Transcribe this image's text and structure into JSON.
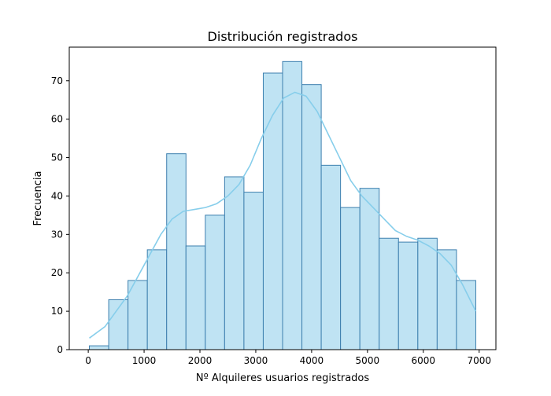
{
  "chart_data": {
    "type": "bar",
    "subtype": "histogram-with-kde",
    "title": "Distribución registrados",
    "xlabel": "Nº Alquileres usuarios registrados",
    "ylabel": "Frecuencia",
    "bin_edges": [
      20,
      366,
      712,
      1058,
      1404,
      1750,
      2096,
      2442,
      2788,
      3134,
      3480,
      3826,
      4172,
      4518,
      4864,
      5210,
      5556,
      5902,
      6248,
      6594,
      6940
    ],
    "values": [
      1,
      13,
      18,
      26,
      51,
      27,
      35,
      45,
      41,
      72,
      75,
      69,
      48,
      37,
      42,
      29,
      28,
      29,
      26,
      18
    ],
    "kde": {
      "x": [
        20,
        300,
        700,
        1000,
        1300,
        1500,
        1700,
        1900,
        2100,
        2300,
        2500,
        2700,
        2900,
        3100,
        3300,
        3500,
        3700,
        3900,
        4100,
        4300,
        4500,
        4700,
        4900,
        5100,
        5300,
        5500,
        5700,
        5900,
        6100,
        6300,
        6500,
        6700,
        6940
      ],
      "y": [
        3,
        6,
        14,
        22,
        30,
        34,
        36,
        36.5,
        37,
        38,
        40,
        43,
        48,
        55,
        61,
        65.5,
        67,
        66,
        62,
        56,
        50,
        44,
        40,
        37,
        34,
        31,
        29.5,
        28.5,
        27,
        25,
        22,
        17,
        10
      ]
    },
    "xlim": [
      -340,
      7300
    ],
    "ylim": [
      0,
      78.75
    ],
    "x_ticks": [
      0,
      1000,
      2000,
      3000,
      4000,
      5000,
      6000,
      7000
    ],
    "y_ticks": [
      0,
      10,
      20,
      30,
      40,
      50,
      60,
      70
    ],
    "bar_color": "#bfe3f3",
    "bar_edge_color": "#3d7fae",
    "kde_color": "#87ceeb",
    "grid": false,
    "legend": "none"
  }
}
